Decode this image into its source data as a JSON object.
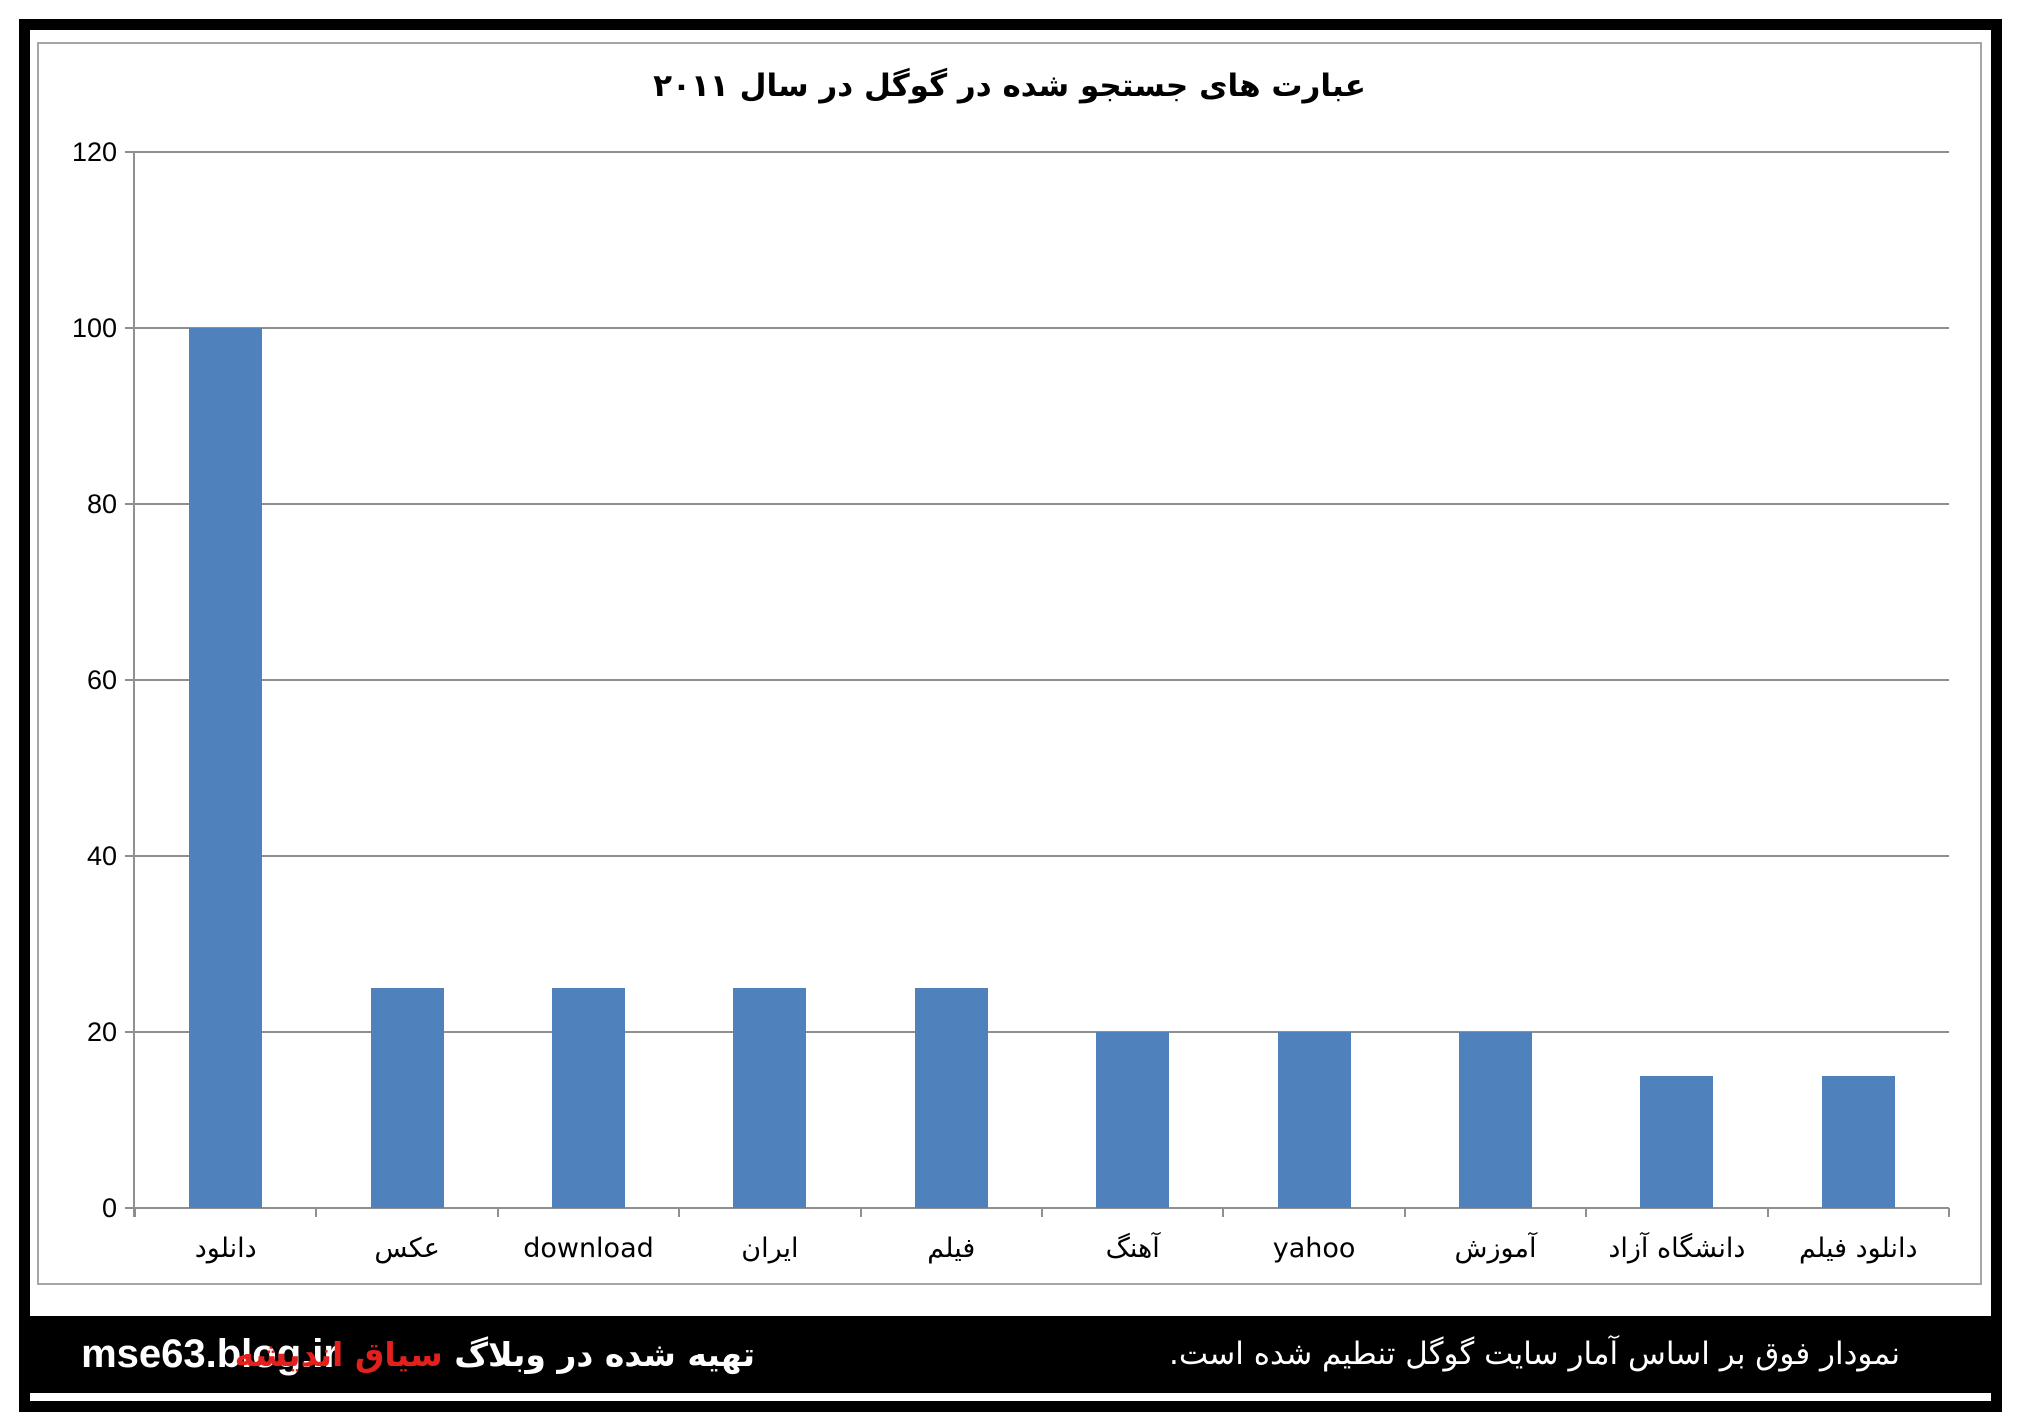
{
  "title": "عبارت های جستجو شده در گوگل در سال ۲۰۱۱",
  "chart_data": {
    "type": "bar",
    "title": "عبارت های جستجو شده در گوگل در سال ۲۰۱۱",
    "categories": [
      "دانلود",
      "عکس",
      "download",
      "ایران",
      "فیلم",
      "آهنگ",
      "yahoo",
      "آموزش",
      "دانشگاه آزاد",
      "دانلود فیلم"
    ],
    "values": [
      100,
      25,
      25,
      25,
      25,
      20,
      20,
      20,
      15,
      15
    ],
    "xlabel": "",
    "ylabel": "",
    "ylim": [
      0,
      120
    ],
    "yticks": [
      0,
      20,
      40,
      60,
      80,
      100,
      120
    ],
    "grid": true,
    "legend": "none",
    "bar_color": "#4F81BD",
    "gridline_color": "#8f8f8f"
  },
  "footer": {
    "site": "mse63.blog.ir",
    "credit_prefix": "تهیه شده در وبلاگ",
    "credit_blog_name": "سیاق اندیشه",
    "credit_accent_color": "#e3201b",
    "note": "نمودار فوق بر اساس آمار سایت گوگل تنطیم شده است."
  }
}
